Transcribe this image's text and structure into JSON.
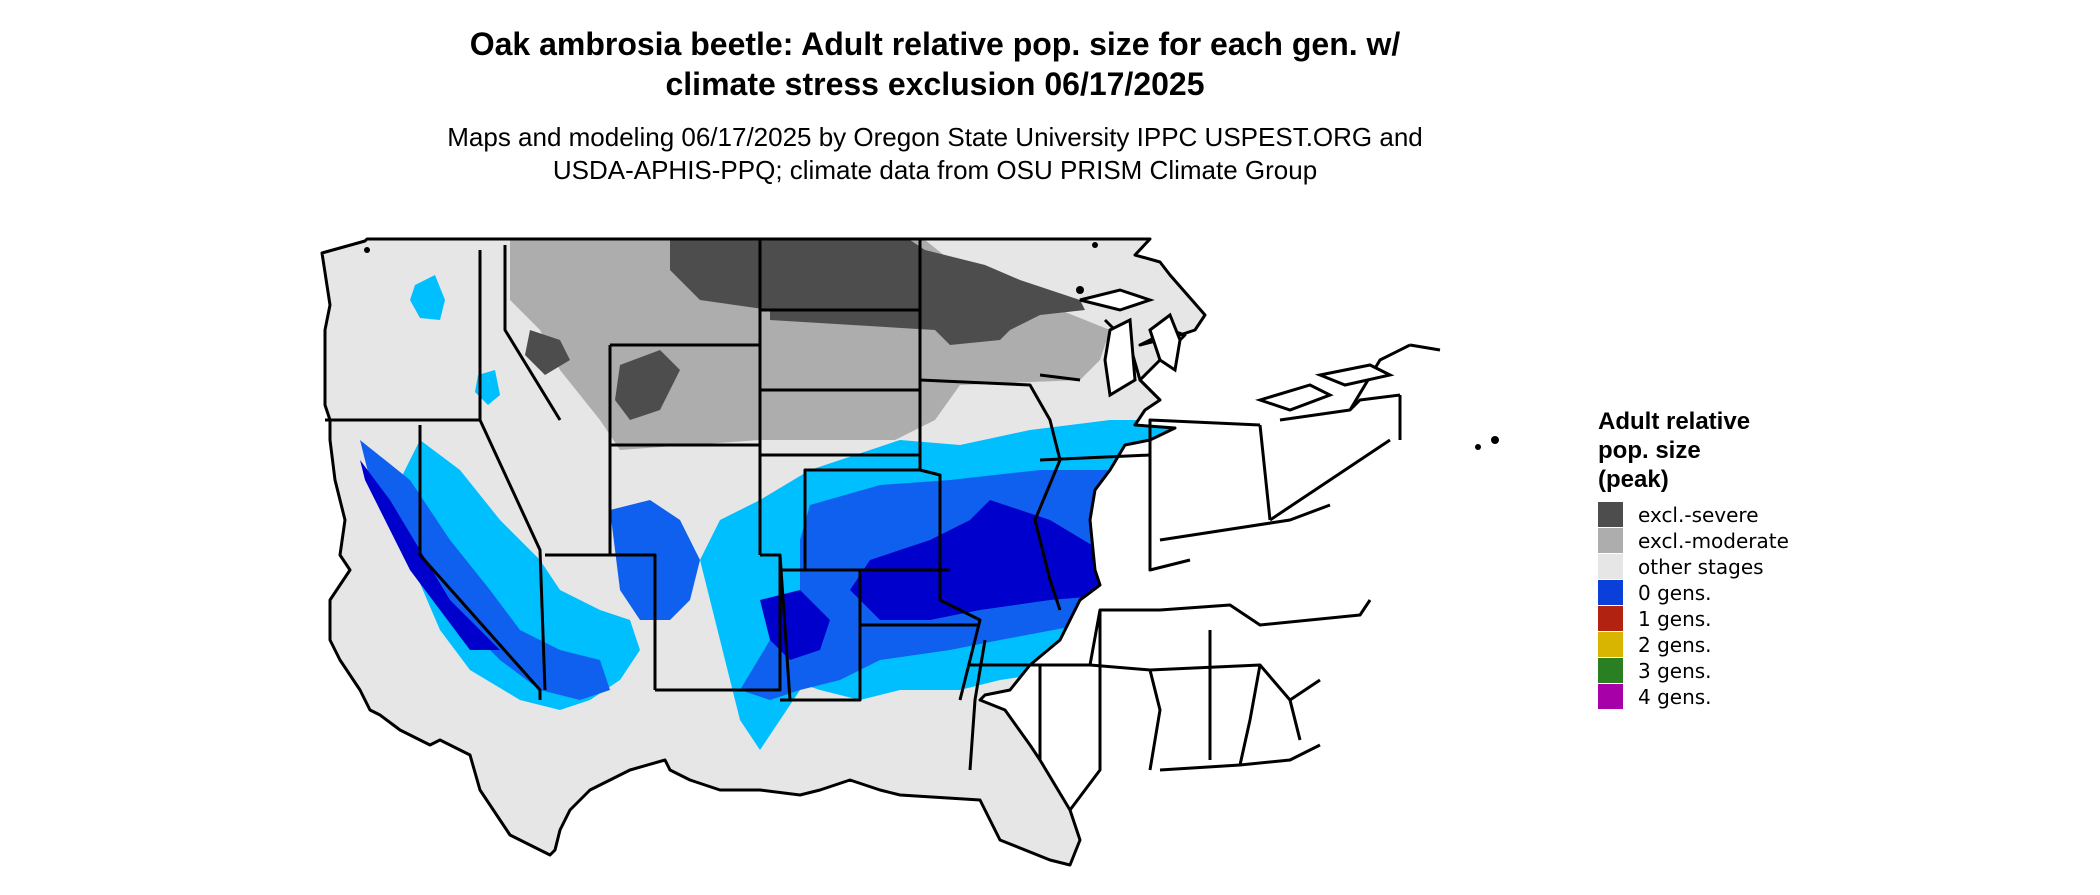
{
  "title": {
    "line1": "Oak ambrosia beetle: Adult relative pop. size for each gen. w/",
    "line2": "climate stress exclusion 06/17/2025"
  },
  "subtitle": {
    "line1": "Maps and modeling 06/17/2025 by Oregon State University IPPC USPEST.ORG and",
    "line2": "USDA-APHIS-PPQ; climate data from OSU PRISM Climate Group"
  },
  "legend": {
    "title_line1": "Adult relative",
    "title_line2": "pop. size",
    "title_line3": "(peak)",
    "items": [
      {
        "label": "excl.-severe",
        "color": "#4d4d4d"
      },
      {
        "label": "excl.-moderate",
        "color": "#adadad"
      },
      {
        "label": "other stages",
        "color": "#e6e6e6"
      },
      {
        "label": "0 gens.",
        "color": "#0b3fd9"
      },
      {
        "label": "1 gens.",
        "color": "#b22210"
      },
      {
        "label": "2 gens.",
        "color": "#d8b500"
      },
      {
        "label": "3 gens.",
        "color": "#2a7f23"
      },
      {
        "label": "4 gens.",
        "color": "#a800a8"
      }
    ]
  },
  "map_colors": {
    "background_land": "#e6e6e6",
    "excl_severe": "#4d4d4d",
    "excl_moderate": "#adadad",
    "light_blue": "#00bfff",
    "mid_blue": "#1060f0",
    "dark_blue": "#0000cc",
    "gen1_orange": "#ff4500",
    "borders": "#000000"
  }
}
